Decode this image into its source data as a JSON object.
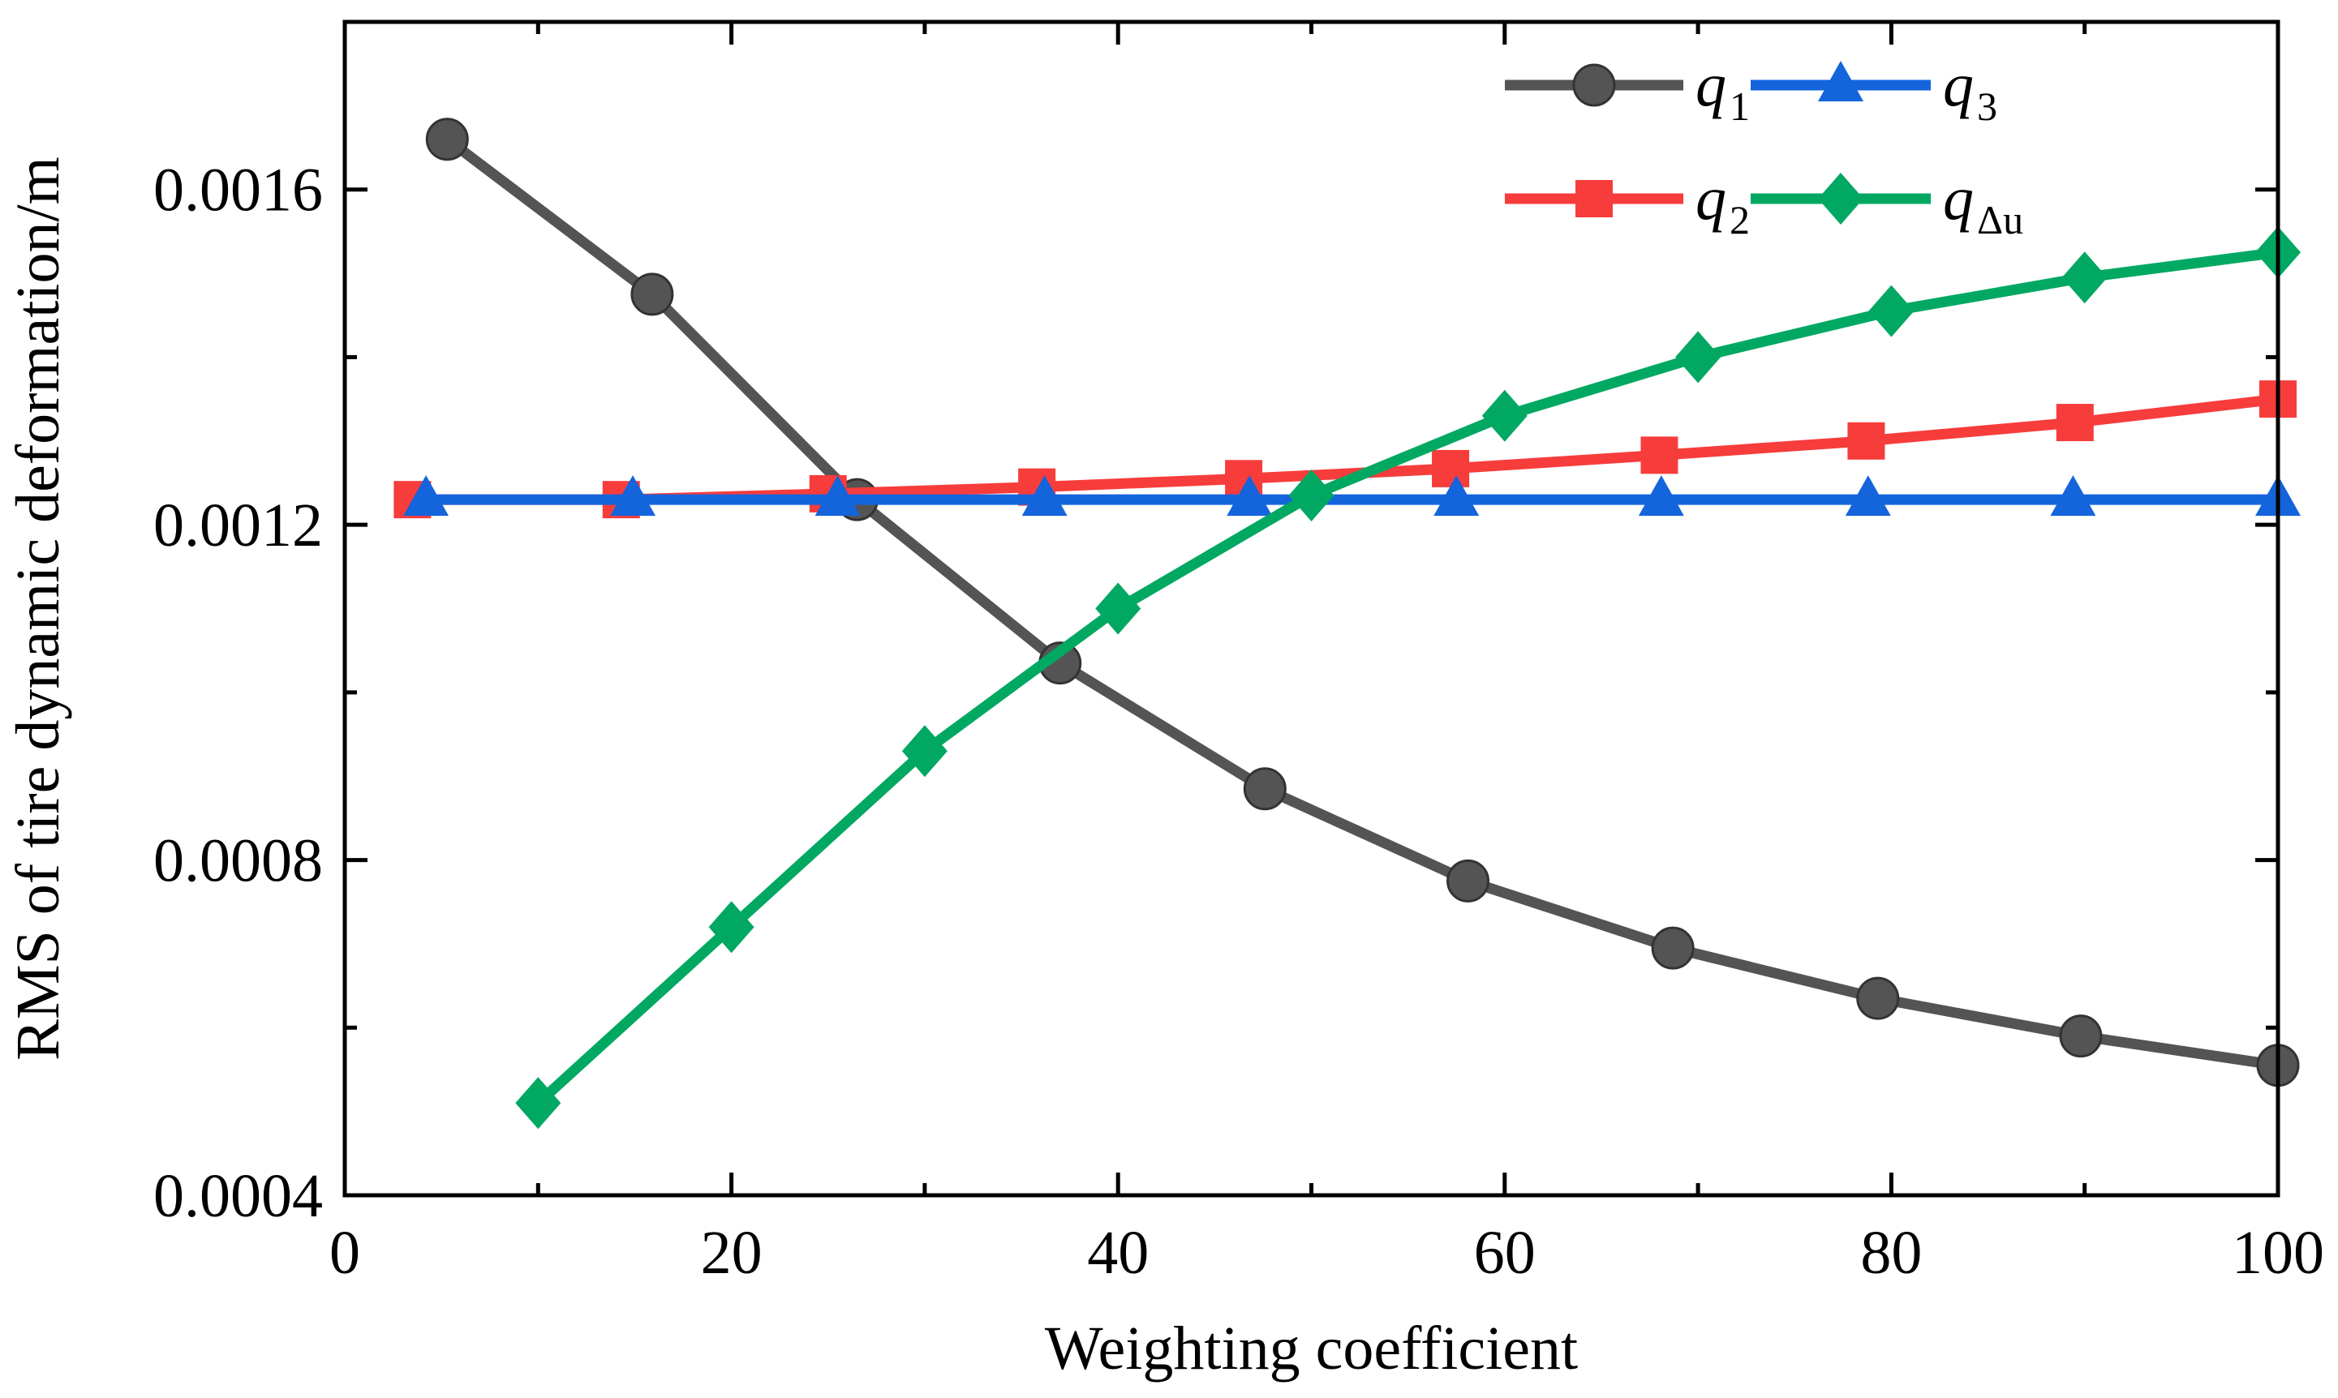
{
  "chart_data": {
    "type": "line",
    "title": "",
    "xlabel": "Weighting coefficient",
    "ylabel": "RMS of tire dynamic deformation/m",
    "xlim": [
      0,
      100
    ],
    "ylim": [
      0.0004,
      0.0018
    ],
    "x_ticks": [
      0,
      20,
      40,
      60,
      80,
      100
    ],
    "x_tick_labels": [
      "0",
      "20",
      "40",
      "60",
      "80",
      "100"
    ],
    "y_ticks": [
      0.0004,
      0.0008,
      0.0012,
      0.0016
    ],
    "y_tick_labels": [
      "0.0004",
      "0.0008",
      "0.0012",
      "0.0016"
    ],
    "legend_position": "top-right",
    "series": [
      {
        "name": "q1",
        "base": "q",
        "sub": "1",
        "color": "#545454",
        "marker": "circle",
        "x": [
          5.3,
          15.9,
          26.5,
          37.0,
          47.6,
          58.1,
          68.7,
          79.3,
          89.8,
          100
        ],
        "y": [
          0.00166,
          0.001475,
          0.00123,
          0.001035,
          0.000885,
          0.000775,
          0.000695,
          0.000635,
          0.00059,
          0.000555
        ]
      },
      {
        "name": "q2",
        "base": "q",
        "sub": "2",
        "color": "#f73c3c",
        "marker": "square",
        "x": [
          3.5,
          14.3,
          25.0,
          35.8,
          46.5,
          57.2,
          68.0,
          78.7,
          89.5,
          100
        ],
        "y": [
          0.00123,
          0.00123,
          0.001237,
          0.001245,
          0.001255,
          0.001267,
          0.001283,
          0.0013,
          0.001322,
          0.00135
        ]
      },
      {
        "name": "q3",
        "base": "q",
        "sub": "3",
        "color": "#1464dc",
        "marker": "triangle",
        "x": [
          4.2,
          14.9,
          25.5,
          36.2,
          46.8,
          57.5,
          68.1,
          78.8,
          89.4,
          100
        ],
        "y": [
          0.00123,
          0.00123,
          0.00123,
          0.00123,
          0.00123,
          0.00123,
          0.00123,
          0.00123,
          0.00123,
          0.00123
        ]
      },
      {
        "name": "qΔu",
        "base": "q",
        "sub": "Δu",
        "color": "#00a862",
        "marker": "diamond",
        "x": [
          10,
          20,
          30,
          40,
          50,
          60,
          70,
          80,
          90,
          100
        ],
        "y": [
          0.00051,
          0.00072,
          0.00093,
          0.0011,
          0.001235,
          0.00133,
          0.0014,
          0.001455,
          0.001495,
          0.001525
        ]
      }
    ]
  }
}
